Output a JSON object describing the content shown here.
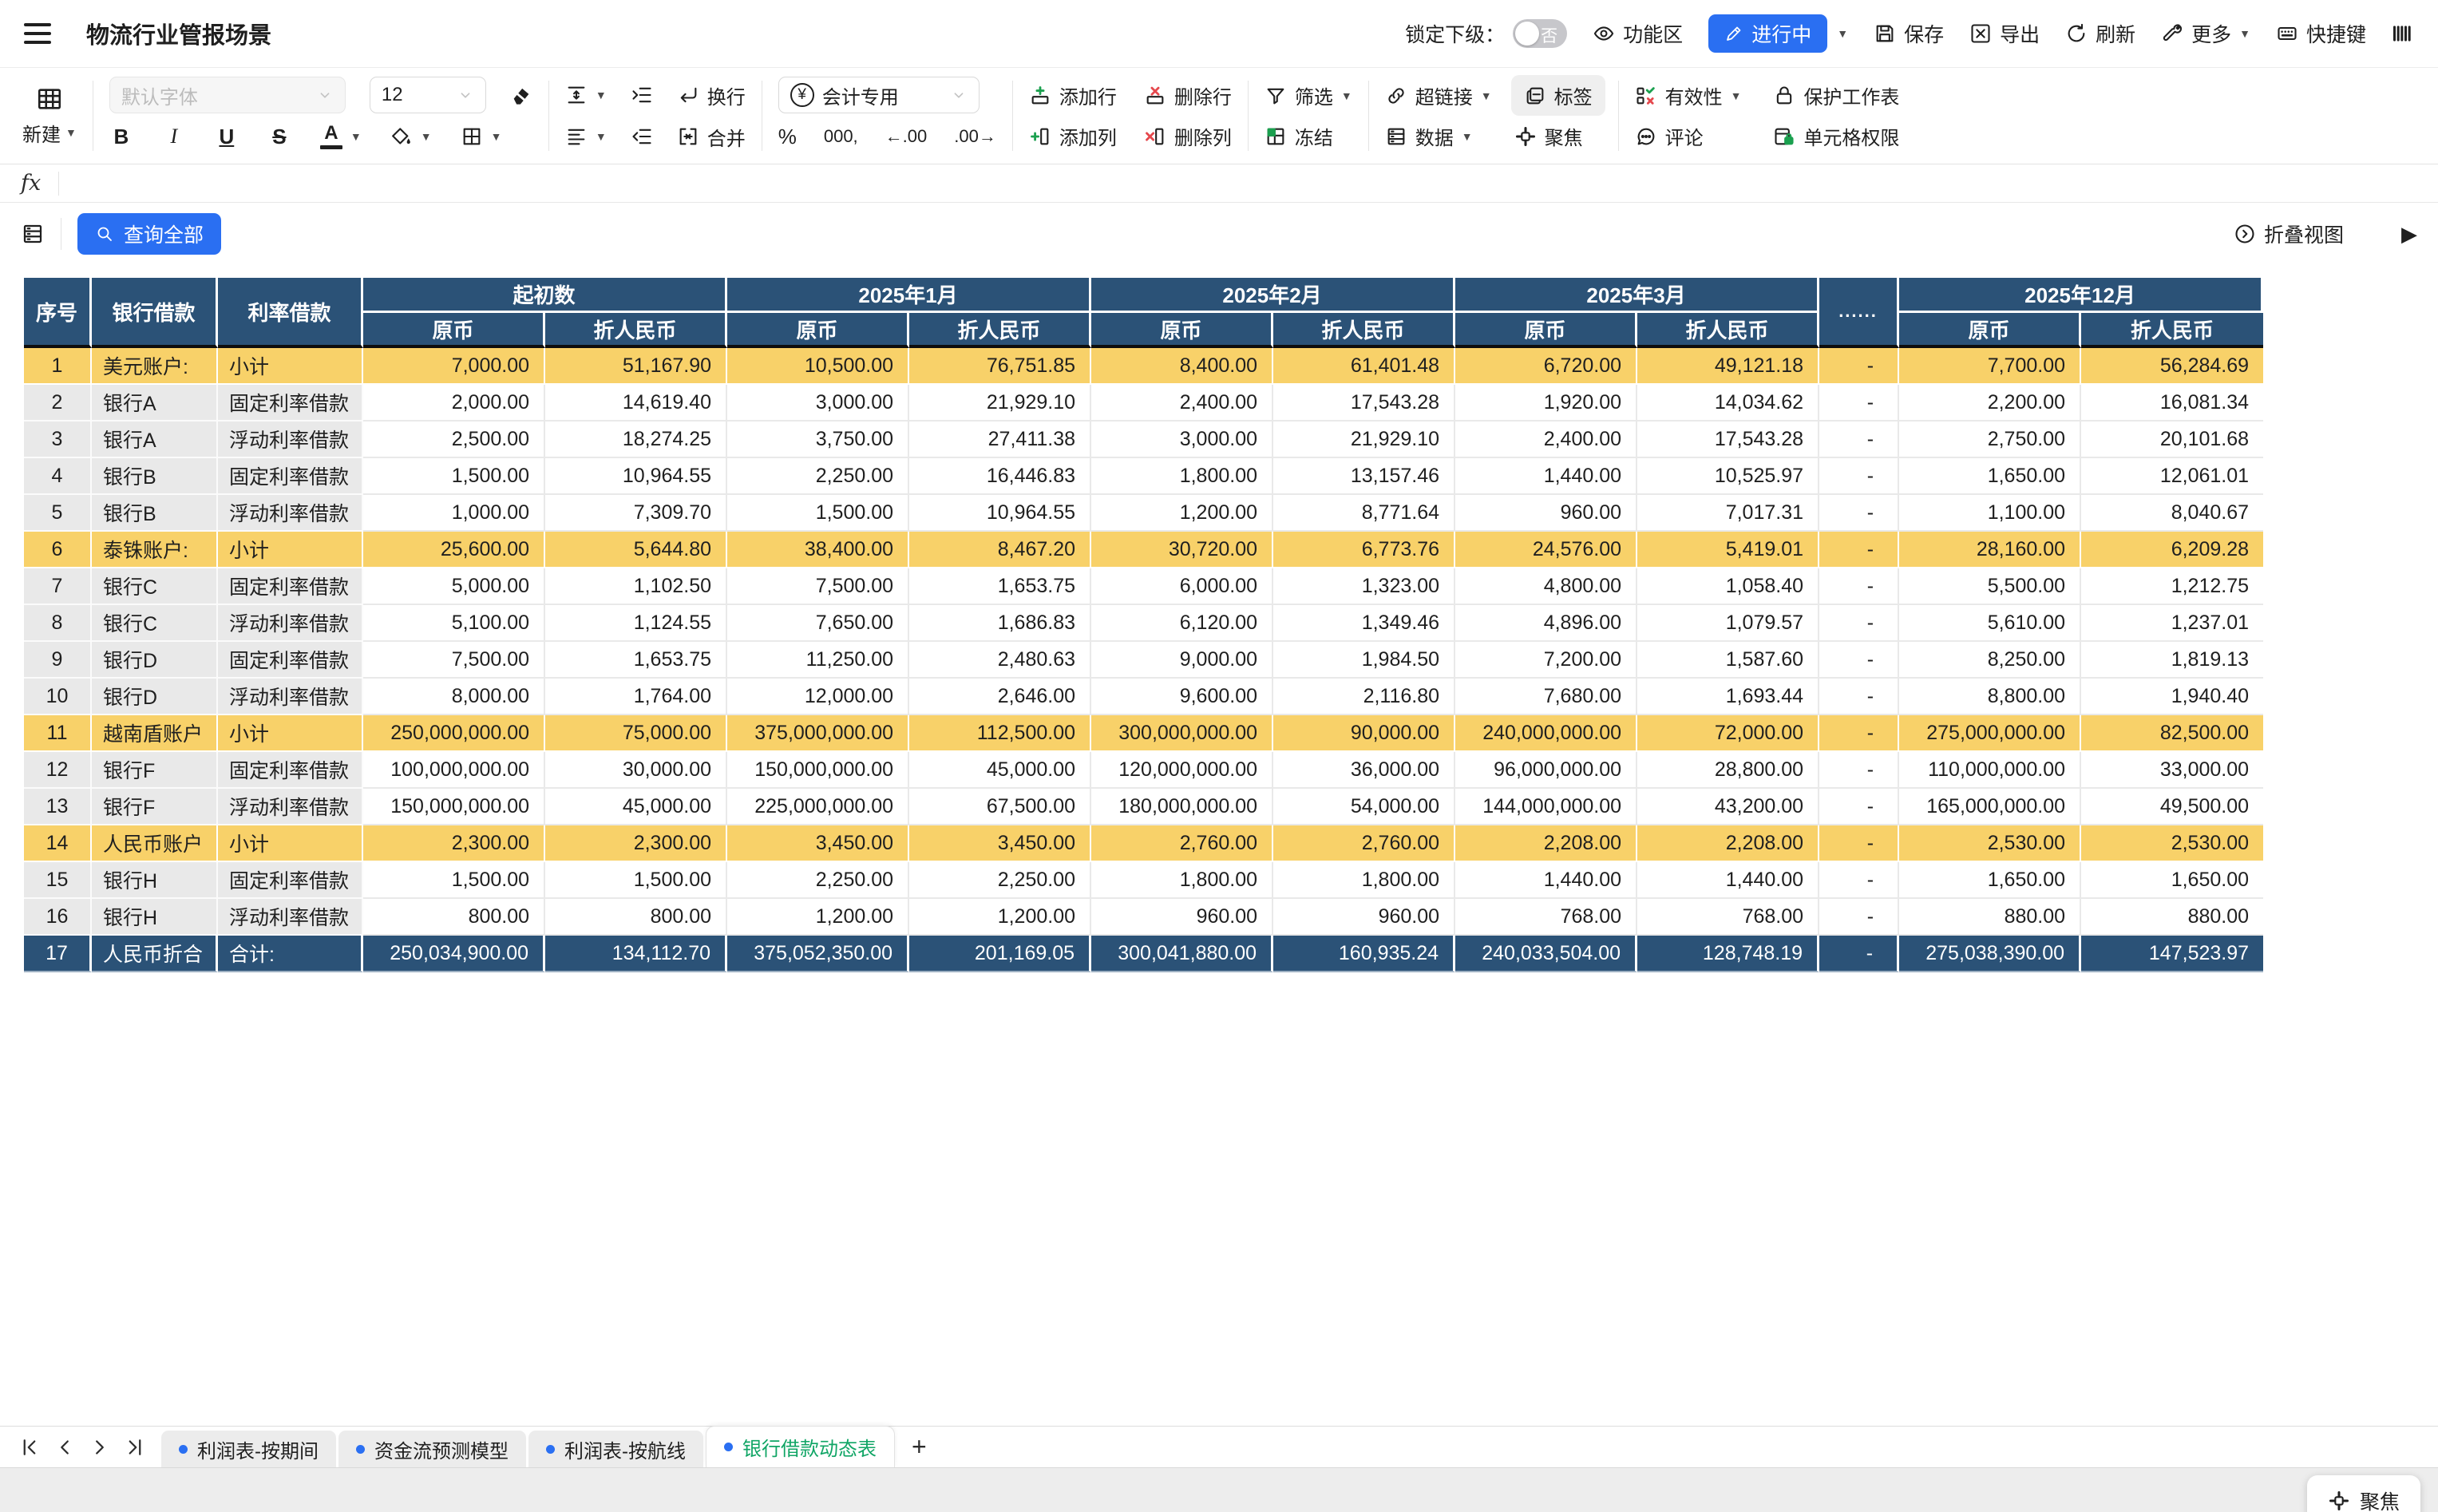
{
  "topbar": {
    "title": "物流行业管报场景",
    "lock_label": "锁定下级：",
    "toggle_value": "否",
    "ribbon_label": "功能区",
    "status_label": "进行中",
    "save_label": "保存",
    "export_label": "导出",
    "refresh_label": "刷新",
    "more_label": "更多",
    "shortcuts_label": "快捷键"
  },
  "toolbar": {
    "new_label": "新建",
    "font_name": "默认字体",
    "font_size": "12",
    "bold": "B",
    "italic": "I",
    "underline": "U",
    "strike": "S",
    "font_color": "A",
    "wrap_label": "换行",
    "merge_label": "合并",
    "number_format": "会计专用",
    "percent": "%",
    "thousands": "000,",
    "dec_decrease": "←.00",
    "dec_increase": ".00→",
    "add_row_label": "添加行",
    "delete_row_label": "删除行",
    "add_col_label": "添加列",
    "delete_col_label": "删除列",
    "filter_label": "筛选",
    "freeze_label": "冻结",
    "hyperlink_label": "超链接",
    "data_label": "数据",
    "tag_label": "标签",
    "focus_label": "聚焦",
    "validity_label": "有效性",
    "comment_label": "评论",
    "protect_label": "保护工作表",
    "cell_permission_label": "单元格权限"
  },
  "formula_bar": {
    "fx_label": "fx",
    "value": ""
  },
  "query_bar": {
    "query_all_label": "查询全部",
    "collapse_view_label": "折叠视图"
  },
  "table": {
    "fixed_headers": [
      "序号",
      "银行借款",
      "利率借款"
    ],
    "groups": [
      {
        "label": "起初数"
      },
      {
        "label": "2025年1月"
      },
      {
        "label": "2025年2月"
      },
      {
        "label": "2025年3月"
      },
      {
        "label": "......",
        "ellipsis": true
      },
      {
        "label": "2025年12月"
      }
    ],
    "sub_headers": [
      "原币",
      "折人民币"
    ],
    "rows": [
      {
        "no": "1",
        "bank": "美元账户:",
        "type": "小计",
        "kind": "subtotal",
        "cells": [
          "7,000.00",
          "51,167.90",
          "10,500.00",
          "76,751.85",
          "8,400.00",
          "61,401.48",
          "6,720.00",
          "49,121.18",
          "-",
          "7,700.00",
          "56,284.69"
        ]
      },
      {
        "no": "2",
        "bank": "银行A",
        "type": "固定利率借款",
        "kind": "normal",
        "cells": [
          "2,000.00",
          "14,619.40",
          "3,000.00",
          "21,929.10",
          "2,400.00",
          "17,543.28",
          "1,920.00",
          "14,034.62",
          "-",
          "2,200.00",
          "16,081.34"
        ]
      },
      {
        "no": "3",
        "bank": "银行A",
        "type": "浮动利率借款",
        "kind": "normal",
        "cells": [
          "2,500.00",
          "18,274.25",
          "3,750.00",
          "27,411.38",
          "3,000.00",
          "21,929.10",
          "2,400.00",
          "17,543.28",
          "-",
          "2,750.00",
          "20,101.68"
        ]
      },
      {
        "no": "4",
        "bank": "银行B",
        "type": "固定利率借款",
        "kind": "normal",
        "cells": [
          "1,500.00",
          "10,964.55",
          "2,250.00",
          "16,446.83",
          "1,800.00",
          "13,157.46",
          "1,440.00",
          "10,525.97",
          "-",
          "1,650.00",
          "12,061.01"
        ]
      },
      {
        "no": "5",
        "bank": "银行B",
        "type": "浮动利率借款",
        "kind": "normal",
        "cells": [
          "1,000.00",
          "7,309.70",
          "1,500.00",
          "10,964.55",
          "1,200.00",
          "8,771.64",
          "960.00",
          "7,017.31",
          "-",
          "1,100.00",
          "8,040.67"
        ]
      },
      {
        "no": "6",
        "bank": "泰铢账户:",
        "type": "小计",
        "kind": "subtotal",
        "cells": [
          "25,600.00",
          "5,644.80",
          "38,400.00",
          "8,467.20",
          "30,720.00",
          "6,773.76",
          "24,576.00",
          "5,419.01",
          "-",
          "28,160.00",
          "6,209.28"
        ]
      },
      {
        "no": "7",
        "bank": "银行C",
        "type": "固定利率借款",
        "kind": "normal",
        "cells": [
          "5,000.00",
          "1,102.50",
          "7,500.00",
          "1,653.75",
          "6,000.00",
          "1,323.00",
          "4,800.00",
          "1,058.40",
          "-",
          "5,500.00",
          "1,212.75"
        ]
      },
      {
        "no": "8",
        "bank": "银行C",
        "type": "浮动利率借款",
        "kind": "normal",
        "cells": [
          "5,100.00",
          "1,124.55",
          "7,650.00",
          "1,686.83",
          "6,120.00",
          "1,349.46",
          "4,896.00",
          "1,079.57",
          "-",
          "5,610.00",
          "1,237.01"
        ]
      },
      {
        "no": "9",
        "bank": "银行D",
        "type": "固定利率借款",
        "kind": "normal",
        "cells": [
          "7,500.00",
          "1,653.75",
          "11,250.00",
          "2,480.63",
          "9,000.00",
          "1,984.50",
          "7,200.00",
          "1,587.60",
          "-",
          "8,250.00",
          "1,819.13"
        ]
      },
      {
        "no": "10",
        "bank": "银行D",
        "type": "浮动利率借款",
        "kind": "normal",
        "cells": [
          "8,000.00",
          "1,764.00",
          "12,000.00",
          "2,646.00",
          "9,600.00",
          "2,116.80",
          "7,680.00",
          "1,693.44",
          "-",
          "8,800.00",
          "1,940.40"
        ]
      },
      {
        "no": "11",
        "bank": "越南盾账户",
        "type": "小计",
        "kind": "subtotal",
        "cells": [
          "250,000,000.00",
          "75,000.00",
          "375,000,000.00",
          "112,500.00",
          "300,000,000.00",
          "90,000.00",
          "240,000,000.00",
          "72,000.00",
          "-",
          "275,000,000.00",
          "82,500.00"
        ]
      },
      {
        "no": "12",
        "bank": "银行F",
        "type": "固定利率借款",
        "kind": "normal",
        "cells": [
          "100,000,000.00",
          "30,000.00",
          "150,000,000.00",
          "45,000.00",
          "120,000,000.00",
          "36,000.00",
          "96,000,000.00",
          "28,800.00",
          "-",
          "110,000,000.00",
          "33,000.00"
        ]
      },
      {
        "no": "13",
        "bank": "银行F",
        "type": "浮动利率借款",
        "kind": "normal",
        "cells": [
          "150,000,000.00",
          "45,000.00",
          "225,000,000.00",
          "67,500.00",
          "180,000,000.00",
          "54,000.00",
          "144,000,000.00",
          "43,200.00",
          "-",
          "165,000,000.00",
          "49,500.00"
        ]
      },
      {
        "no": "14",
        "bank": "人民币账户",
        "type": "小计",
        "kind": "subtotal",
        "cells": [
          "2,300.00",
          "2,300.00",
          "3,450.00",
          "3,450.00",
          "2,760.00",
          "2,760.00",
          "2,208.00",
          "2,208.00",
          "-",
          "2,530.00",
          "2,530.00"
        ]
      },
      {
        "no": "15",
        "bank": "银行H",
        "type": "固定利率借款",
        "kind": "normal",
        "cells": [
          "1,500.00",
          "1,500.00",
          "2,250.00",
          "2,250.00",
          "1,800.00",
          "1,800.00",
          "1,440.00",
          "1,440.00",
          "-",
          "1,650.00",
          "1,650.00"
        ]
      },
      {
        "no": "16",
        "bank": "银行H",
        "type": "浮动利率借款",
        "kind": "normal",
        "cells": [
          "800.00",
          "800.00",
          "1,200.00",
          "1,200.00",
          "960.00",
          "960.00",
          "768.00",
          "768.00",
          "-",
          "880.00",
          "880.00"
        ]
      },
      {
        "no": "17",
        "bank": "人民币折合",
        "type": "合计:",
        "kind": "total",
        "cells": [
          "250,034,900.00",
          "134,112.70",
          "375,052,350.00",
          "201,169.05",
          "300,041,880.00",
          "160,935.24",
          "240,033,504.00",
          "128,748.19",
          "-",
          "275,038,390.00",
          "147,523.97"
        ]
      }
    ]
  },
  "sheet_tabs": {
    "tabs": [
      {
        "label": "利润表-按期间",
        "active": false
      },
      {
        "label": "资金流预测模型",
        "active": false
      },
      {
        "label": "利润表-按航线",
        "active": false
      },
      {
        "label": "银行借款动态表",
        "active": true
      }
    ],
    "add_label": "+"
  },
  "status_bar": {
    "focus_label": "聚焦"
  },
  "colors": {
    "header_bg": "#2b5277",
    "subtotal_bg": "#f8d169",
    "label_col_bg": "#e9e9e9",
    "accent_blue": "#2a6ff2",
    "active_tab_green": "#10a565"
  }
}
